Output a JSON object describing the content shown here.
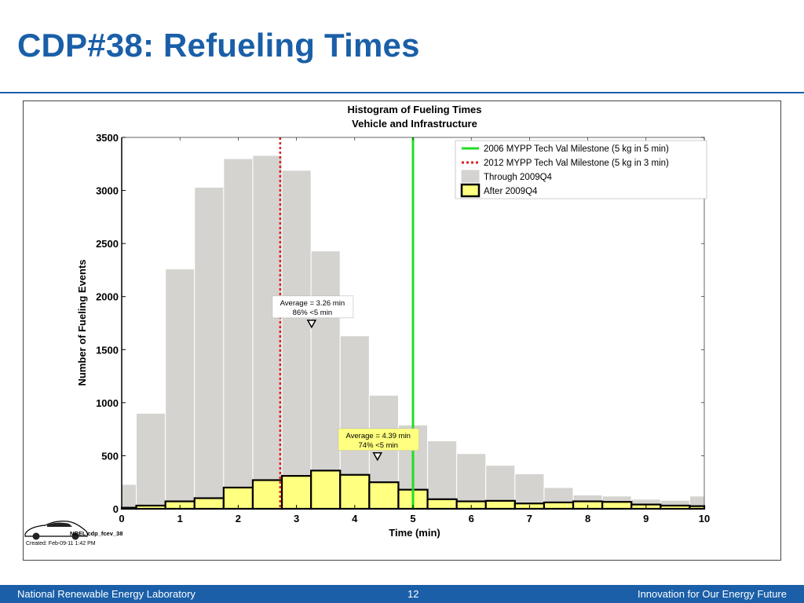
{
  "slide": {
    "title": "CDP#38: Refueling Times"
  },
  "footer": {
    "left": "National Renewable Energy Laboratory",
    "page": "12",
    "right": "Innovation for Our Energy Future"
  },
  "figure": {
    "logo_label": "NREL cdp_fcev_38",
    "created": "Created: Feb-09-11  1:42 PM"
  },
  "chart_data": {
    "type": "bar",
    "title": "Histogram of Fueling Times",
    "subtitle": "Vehicle and Infrastructure",
    "xlabel": "Time (min)",
    "ylabel": "Number of Fueling Events",
    "xlim": [
      0,
      10
    ],
    "ylim": [
      0,
      3500
    ],
    "xticks": [
      0,
      1,
      2,
      3,
      4,
      5,
      6,
      7,
      8,
      9,
      10
    ],
    "yticks": [
      0,
      500,
      1000,
      1500,
      2000,
      2500,
      3000,
      3500
    ],
    "bin_width": 0.5,
    "bin_edges": [
      0,
      0.25,
      0.75,
      1.25,
      1.75,
      2.25,
      2.75,
      3.25,
      3.75,
      4.25,
      4.75,
      5.25,
      5.75,
      6.25,
      6.75,
      7.25,
      7.75,
      8.25,
      8.75,
      9.25,
      9.75,
      10
    ],
    "series": [
      {
        "name": "Through 2009Q4",
        "color": "#d4d3cf",
        "values": [
          230,
          900,
          2260,
          3030,
          3300,
          3330,
          3190,
          2430,
          1630,
          1070,
          790,
          640,
          520,
          410,
          330,
          200,
          130,
          120,
          90,
          80,
          120
        ]
      },
      {
        "name": "After 2009Q4",
        "color": "#ffff80",
        "values": [
          10,
          30,
          70,
          100,
          200,
          270,
          310,
          360,
          320,
          250,
          180,
          90,
          70,
          75,
          50,
          60,
          70,
          65,
          40,
          30,
          25
        ]
      }
    ],
    "milestones": [
      {
        "name": "2006 MYPP Tech Val Milestone (5 kg in 5 min)",
        "x": 5.0,
        "color": "#22dd22",
        "style": "solid"
      },
      {
        "name": "2012 MYPP Tech Val Milestone (5 kg in 3 min)",
        "x": 2.72,
        "color": "#dd2222",
        "style": "dotted"
      }
    ],
    "annotations": [
      {
        "line1": "Average = 3.26 min",
        "line2": "86% <5 min",
        "x": 3.26,
        "y": 1740,
        "box_color": "#ffffff"
      },
      {
        "line1": "Average = 4.39 min",
        "line2": "74% <5 min",
        "x": 4.39,
        "y": 490,
        "box_color": "#ffff80"
      }
    ],
    "legend_position": "top-right",
    "grid": false
  }
}
